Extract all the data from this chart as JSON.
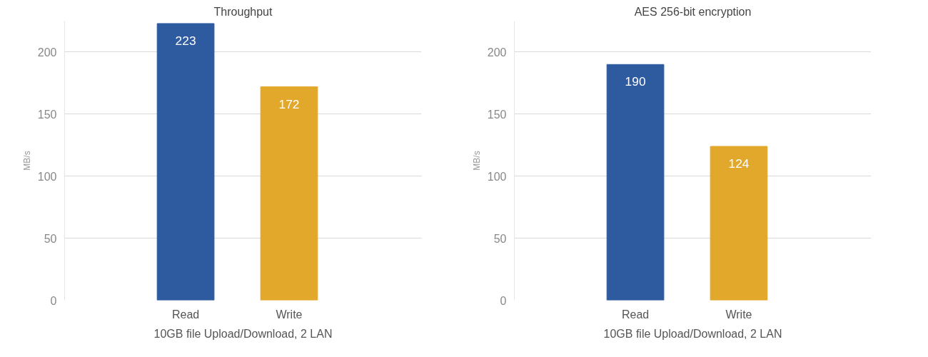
{
  "chart_data": [
    {
      "type": "bar",
      "title": "Throughput",
      "categories": [
        "Read",
        "Write"
      ],
      "values": [
        223,
        172
      ],
      "colors": [
        "#2e5b9f",
        "#e2a82c"
      ],
      "ylabel": "MB/s",
      "ylim": [
        0,
        225
      ],
      "yticks": [
        0,
        50,
        100,
        150,
        200
      ],
      "grid": "y",
      "data_labels": true,
      "annotations": [
        "10GB file Upload/Download, 2 LAN"
      ]
    },
    {
      "type": "bar",
      "title": "AES 256-bit encryption",
      "categories": [
        "Read",
        "Write"
      ],
      "values": [
        190,
        124
      ],
      "colors": [
        "#2e5b9f",
        "#e2a82c"
      ],
      "ylabel": "MB/s",
      "ylim": [
        0,
        225
      ],
      "yticks": [
        0,
        50,
        100,
        150,
        200
      ],
      "grid": "y",
      "data_labels": true,
      "annotations": [
        "10GB file Upload/Download, 2 LAN"
      ]
    }
  ]
}
